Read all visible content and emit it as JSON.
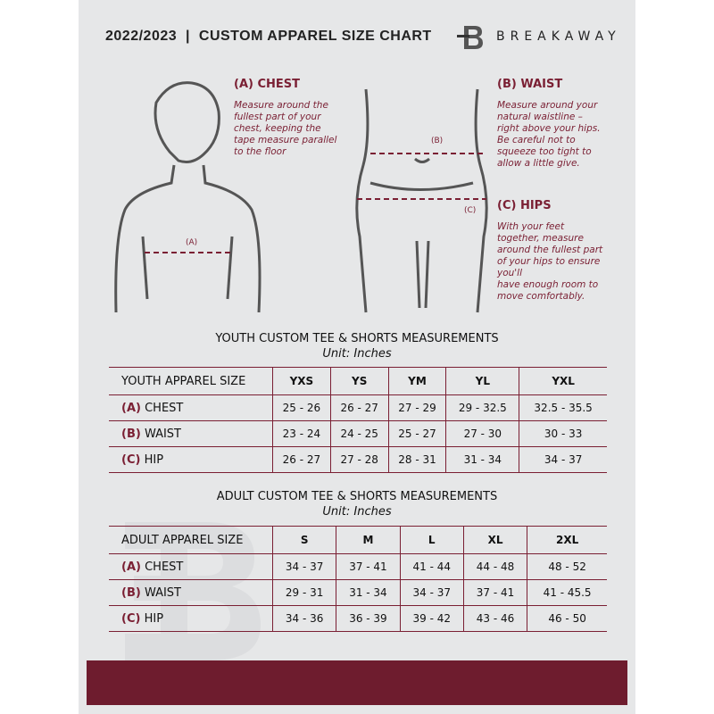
{
  "header": {
    "title": "2022/2023  |  CUSTOM APPAREL SIZE CHART",
    "brand": "BREAKAWAY",
    "logo_letter": "B"
  },
  "measures": {
    "chest": {
      "heading": "(A) CHEST",
      "text": [
        "Measure around the",
        "fullest part of your",
        "chest, keeping the",
        "tape measure parallel",
        "to the floor"
      ],
      "marker": "(A)"
    },
    "waist": {
      "heading": "(B) WAIST",
      "text": [
        "Measure around your",
        "natural waistline –",
        "right above your hips.",
        "Be careful not to",
        "squeeze too tight to",
        "allow a little give."
      ],
      "marker": "(B)"
    },
    "hips": {
      "heading": "(C) HIPS",
      "text": [
        "With your feet",
        "together, measure",
        "around the fullest part",
        "of your hips to ensure",
        "you'll",
        "have enough room to",
        "move comfortably."
      ],
      "marker": "(C)"
    }
  },
  "youth": {
    "title": "YOUTH CUSTOM TEE & SHORTS MEASUREMENTS",
    "unit": "Unit: Inches",
    "header": [
      "YOUTH APPAREL SIZE",
      "YXS",
      "YS",
      "YM",
      "YL",
      "YXL"
    ],
    "rows": [
      {
        "code": "(A)",
        "name": "CHEST",
        "values": [
          "25 - 26",
          "26 - 27",
          "27 - 29",
          "29 - 32.5",
          "32.5 - 35.5"
        ]
      },
      {
        "code": "(B)",
        "name": "WAIST",
        "values": [
          "23 - 24",
          "24 - 25",
          "25 - 27",
          "27 - 30",
          "30 - 33"
        ]
      },
      {
        "code": "(C)",
        "name": "HIP",
        "values": [
          "26 - 27",
          "27 - 28",
          "28 - 31",
          "31 - 34",
          "34 - 37"
        ]
      }
    ]
  },
  "adult": {
    "title": "ADULT CUSTOM TEE & SHORTS MEASUREMENTS",
    "unit": "Unit: Inches",
    "header": [
      "ADULT APPAREL SIZE",
      "S",
      "M",
      "L",
      "XL",
      "2XL"
    ],
    "rows": [
      {
        "code": "(A)",
        "name": "CHEST",
        "values": [
          "34 - 37",
          "37 - 41",
          "41 - 44",
          "44 - 48",
          "48 - 52"
        ]
      },
      {
        "code": "(B)",
        "name": "WAIST",
        "values": [
          "29 - 31",
          "31 - 34",
          "34 - 37",
          "37 - 41",
          "41 - 45.5"
        ]
      },
      {
        "code": "(C)",
        "name": "HIP",
        "values": [
          "34 - 36",
          "36 - 39",
          "39 - 42",
          "43 - 46",
          "46 - 50"
        ]
      }
    ]
  },
  "colors": {
    "accent": "#7a1f33",
    "band": "#6e1c2e",
    "background": "#e6e7e8"
  }
}
